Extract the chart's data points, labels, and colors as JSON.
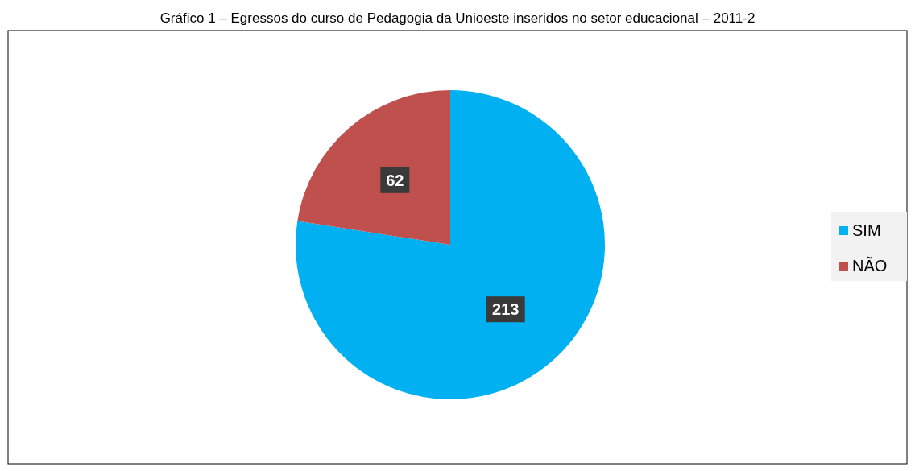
{
  "chart_data": {
    "type": "pie",
    "title": "Gráfico 1 – Egressos do curso de Pedagogia da Unioeste inseridos no setor educacional – 2011-2",
    "categories": [
      "SIM",
      "NÃO"
    ],
    "values": [
      213,
      62
    ],
    "colors": [
      "#00b0f0",
      "#c0504d"
    ],
    "data_labels": true,
    "legend": "right"
  }
}
